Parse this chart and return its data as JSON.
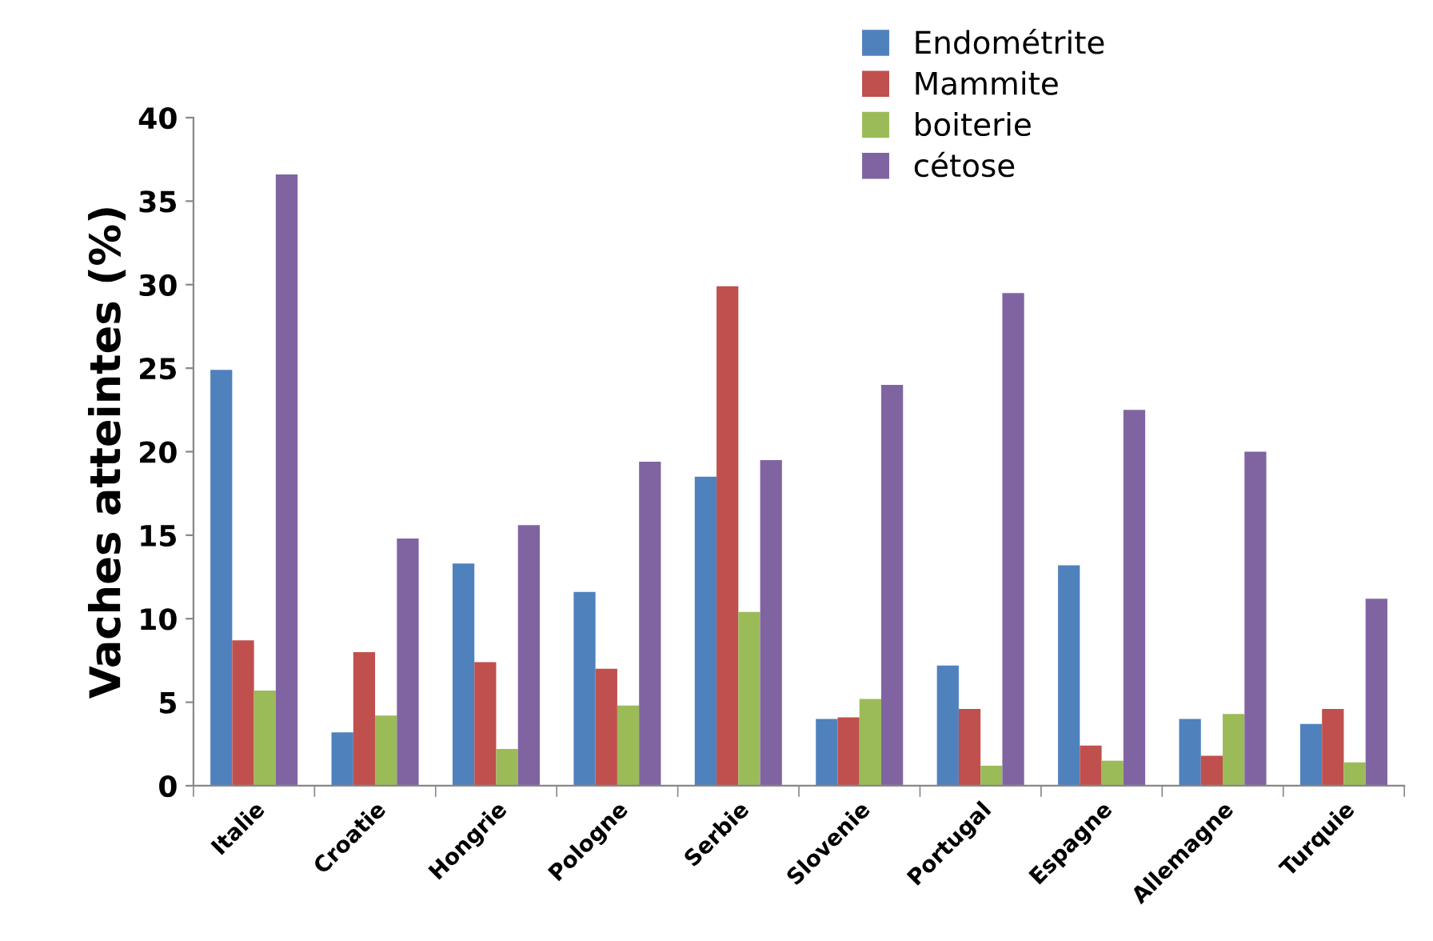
{
  "chart_data": {
    "type": "bar",
    "ylabel": "Vaches atteintes (%)",
    "categories": [
      "Italie",
      "Croatie",
      "Hongrie",
      "Pologne",
      "Serbie",
      "Slovenie",
      "Portugal",
      "Espagne",
      "Allemagne",
      "Turquie"
    ],
    "series": [
      {
        "name": "Endométrite",
        "color": "#4f81bd",
        "values": [
          24.9,
          3.2,
          13.3,
          11.6,
          18.5,
          4.0,
          7.2,
          13.2,
          4.0,
          3.7
        ]
      },
      {
        "name": "Mammite",
        "color": "#c0504d",
        "values": [
          8.7,
          8.0,
          7.4,
          7.0,
          29.9,
          4.1,
          4.6,
          2.4,
          1.8,
          4.6
        ]
      },
      {
        "name": "boiterie",
        "color": "#9bbb59",
        "values": [
          5.7,
          4.2,
          2.2,
          4.8,
          10.4,
          5.2,
          1.2,
          1.5,
          4.3,
          1.4
        ]
      },
      {
        "name": "cétose",
        "color": "#8064a2",
        "values": [
          36.6,
          14.8,
          15.6,
          19.4,
          19.5,
          24.0,
          29.5,
          22.5,
          20.0,
          11.2
        ]
      }
    ],
    "ylim": [
      0,
      40
    ],
    "yticks": [
      0,
      5,
      10,
      15,
      20,
      25,
      30,
      35,
      40
    ],
    "grid": false,
    "legend": "top right"
  }
}
